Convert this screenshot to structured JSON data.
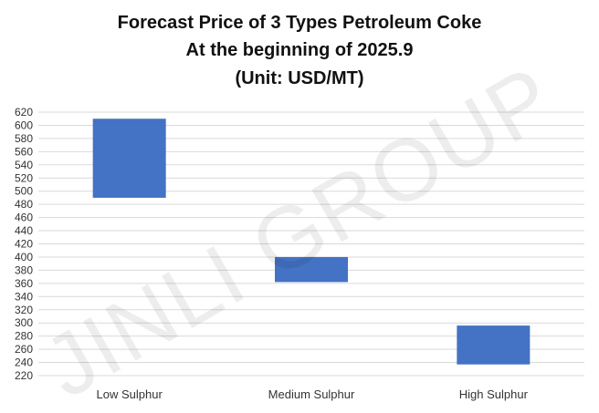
{
  "chart_data": {
    "type": "bar",
    "subtype": "floating-range",
    "title_lines": [
      "Forecast Price of 3 Types Petroleum Coke",
      "At the beginning of 2025.9",
      "(Unit: USD/MT)"
    ],
    "categories": [
      "Low Sulphur",
      "Medium Sulphur",
      "High Sulphur"
    ],
    "series": [
      {
        "ranges": [
          [
            490,
            610
          ],
          [
            362,
            400
          ],
          [
            237,
            296
          ]
        ],
        "color": "#4472C4"
      }
    ],
    "ylim": [
      220,
      620
    ],
    "yticks": [
      220,
      240,
      260,
      280,
      300,
      320,
      340,
      360,
      380,
      400,
      420,
      440,
      460,
      480,
      500,
      520,
      540,
      560,
      580,
      600,
      620
    ],
    "grid": true,
    "legend": "none",
    "gridline_color": "#d9d9d9"
  },
  "watermark": "JINLI GROUP"
}
